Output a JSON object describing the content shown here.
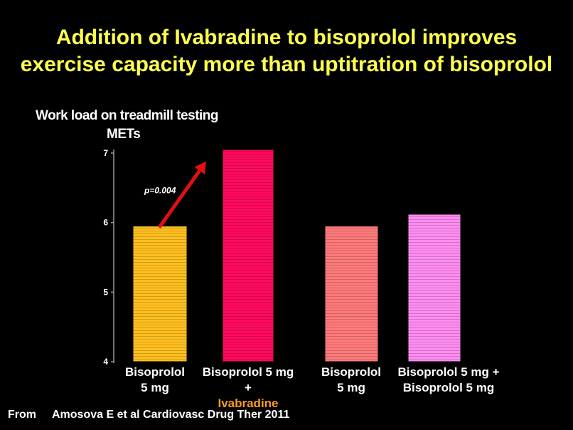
{
  "title": {
    "line1": "Addition of Ivabradine to bisoprolol improves",
    "line2": "exercise capacity more than uptitration of bisoprolol"
  },
  "ylabel": {
    "line1": "Work load on treadmill testing",
    "line2": "METs"
  },
  "citation": {
    "prefix": "From",
    "text": "Amosova E et al Cardiovasc Drug Ther  2011"
  },
  "chart_data": {
    "type": "bar",
    "categories": [
      [
        "Bisoprolol",
        "5 mg"
      ],
      [
        "Bisoprolol 5 mg",
        "+ ",
        "Ivabradine"
      ],
      [
        "Bisoprolol",
        "5 mg"
      ],
      [
        "Bisoprolol 5 mg +",
        "Bisoprolol 5 mg"
      ]
    ],
    "values": [
      5.95,
      7.05,
      5.95,
      6.12
    ],
    "colors": [
      "#ffbf1f",
      "#ff0a5e",
      "#ff7a7a",
      "#ff8cf2"
    ],
    "ylim": [
      4,
      7
    ],
    "yticks": [
      "4",
      "5",
      "6",
      "7"
    ],
    "annotation": {
      "text": "p=0.004",
      "arrow_color": "#e01010",
      "from_bar": 0,
      "to_bar": 1
    },
    "grid": false
  }
}
